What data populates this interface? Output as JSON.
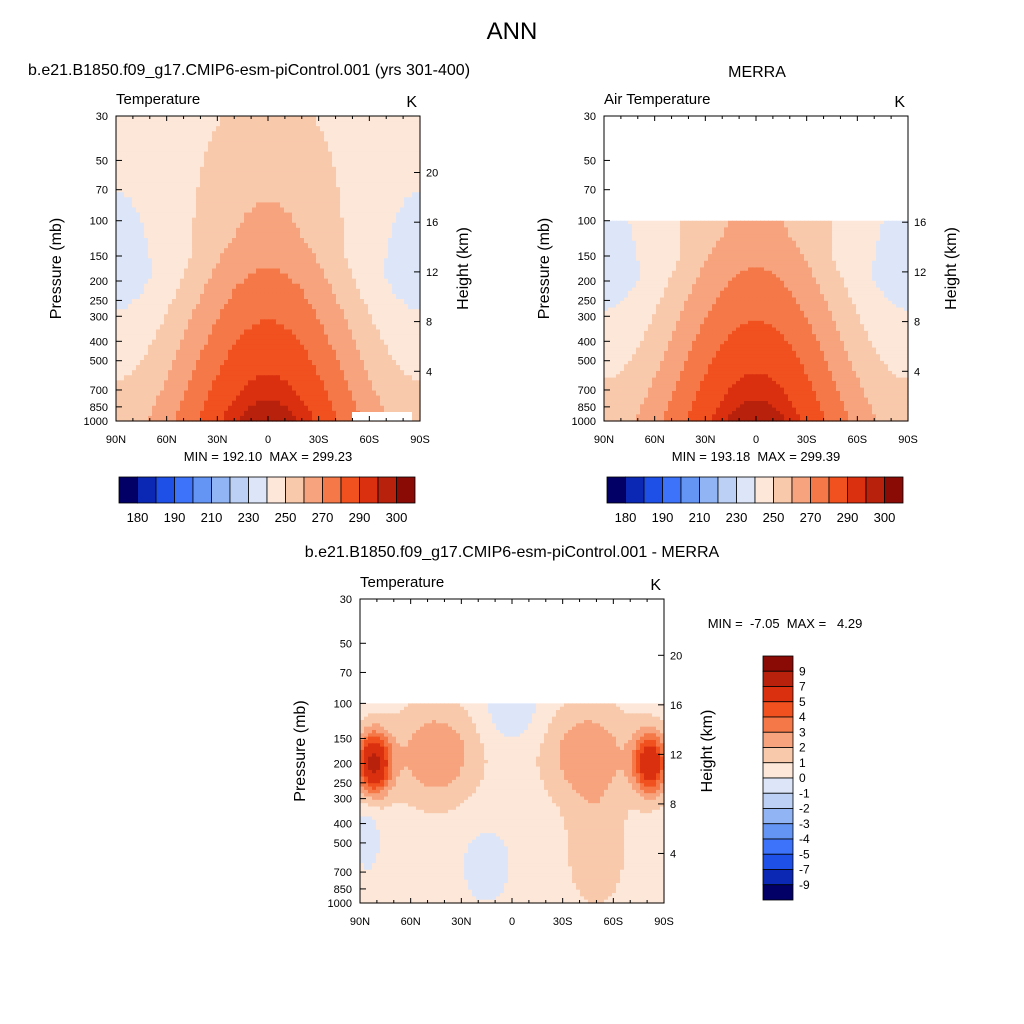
{
  "figure": {
    "title": "ANN",
    "case_label": "b.e21.B1850.f09_g17.CMIP6-esm-piControl.001 (yrs 301-400)",
    "obs_label": "MERRA",
    "diff_label": "b.e21.B1850.f09_g17.CMIP6-esm-piControl.001 - MERRA"
  },
  "chart_data": [
    {
      "id": "case",
      "type": "heatmap",
      "left_title": "Temperature",
      "units": "K",
      "ylabel": "Pressure (mb)",
      "ylabel_right": "Height (km)",
      "x_ticks": [
        "90N",
        "60N",
        "30N",
        "0",
        "30S",
        "60S",
        "90S"
      ],
      "x_values": [
        90,
        60,
        30,
        0,
        -30,
        -60,
        -90
      ],
      "p_ticks": [
        30,
        50,
        70,
        100,
        150,
        200,
        250,
        300,
        400,
        500,
        700,
        850,
        1000
      ],
      "height_ticks": [
        20,
        16,
        12,
        8,
        4
      ],
      "ylim": [
        1000,
        30
      ],
      "stats_text": "MIN = 192.10  MAX = 299.23",
      "min": 192.1,
      "max": 299.23,
      "colorbar": {
        "orientation": "horizontal",
        "labels": [
          "180",
          "190",
          "210",
          "230",
          "250",
          "270",
          "290",
          "300"
        ],
        "colors": [
          "#020066",
          "#0A28B4",
          "#1E4FE6",
          "#3C73FA",
          "#6495F5",
          "#91B4F5",
          "#BCD0F5",
          "#DCE6F8",
          "#FCE7D8",
          "#F9C9AC",
          "#F7A37D",
          "#F47848",
          "#F1511F",
          "#DB3010",
          "#B8220C",
          "#8A0A06"
        ]
      },
      "field": {
        "model": "base",
        "pressure_range_mb": [
          30,
          1000
        ],
        "tropopause_min_K": 192.1,
        "surface_max_K": 299.23
      }
    },
    {
      "id": "obs",
      "type": "heatmap",
      "left_title": "Air Temperature",
      "units": "K",
      "ylabel": "Pressure (mb)",
      "ylabel_right": "Height (km)",
      "x_ticks": [
        "90N",
        "60N",
        "30N",
        "0",
        "30S",
        "60S",
        "90S"
      ],
      "x_values": [
        90,
        60,
        30,
        0,
        -30,
        -60,
        -90
      ],
      "p_ticks": [
        30,
        50,
        70,
        100,
        150,
        200,
        250,
        300,
        400,
        500,
        700,
        850,
        1000
      ],
      "height_ticks": [
        16,
        12,
        8,
        4
      ],
      "ylim": [
        1000,
        30
      ],
      "stats_text": "MIN = 193.18  MAX = 299.39",
      "min": 193.18,
      "max": 299.39,
      "colorbar": {
        "orientation": "horizontal",
        "labels": [
          "180",
          "190",
          "210",
          "230",
          "250",
          "270",
          "290",
          "300"
        ],
        "colors": [
          "#020066",
          "#0A28B4",
          "#1E4FE6",
          "#3C73FA",
          "#6495F5",
          "#91B4F5",
          "#BCD0F5",
          "#DCE6F8",
          "#FCE7D8",
          "#F9C9AC",
          "#F7A37D",
          "#F47848",
          "#F1511F",
          "#DB3010",
          "#B8220C",
          "#8A0A06"
        ]
      },
      "field": {
        "model": "base",
        "pressure_range_mb": [
          100,
          1000
        ],
        "tropopause_min_K": 193.18,
        "surface_max_K": 299.39
      }
    },
    {
      "id": "diff",
      "type": "heatmap",
      "left_title": "Temperature",
      "units": "K",
      "ylabel": "Pressure (mb)",
      "ylabel_right": "Height (km)",
      "x_ticks": [
        "90N",
        "60N",
        "30N",
        "0",
        "30S",
        "60S",
        "90S"
      ],
      "x_values": [
        90,
        60,
        30,
        0,
        -30,
        -60,
        -90
      ],
      "p_ticks": [
        30,
        50,
        70,
        100,
        150,
        200,
        250,
        300,
        400,
        500,
        700,
        850,
        1000
      ],
      "height_ticks": [
        20,
        16,
        12,
        8,
        4
      ],
      "ylim": [
        1000,
        30
      ],
      "stats_text": "MIN =  -7.05  MAX =   4.29",
      "min": -7.05,
      "max": 4.29,
      "colorbar": {
        "orientation": "vertical",
        "labels": [
          "9",
          "7",
          "5",
          "4",
          "3",
          "2",
          "1",
          "0",
          "-1",
          "-2",
          "-3",
          "-4",
          "-5",
          "-7",
          "-9"
        ],
        "colors": [
          "#8A0A06",
          "#B8220C",
          "#DB3010",
          "#F1511F",
          "#F47848",
          "#F7A37D",
          "#F9C9AC",
          "#FCE7D8",
          "#DCE6F8",
          "#BCD0F5",
          "#91B4F5",
          "#6495F5",
          "#3C73FA",
          "#1E4FE6",
          "#0A28B4",
          "#020066"
        ]
      },
      "field": {
        "model": "diff",
        "pressure_range_mb": [
          100,
          1000
        ],
        "tropopause_min_K": -7.05,
        "surface_max_K": 4.29
      }
    }
  ]
}
